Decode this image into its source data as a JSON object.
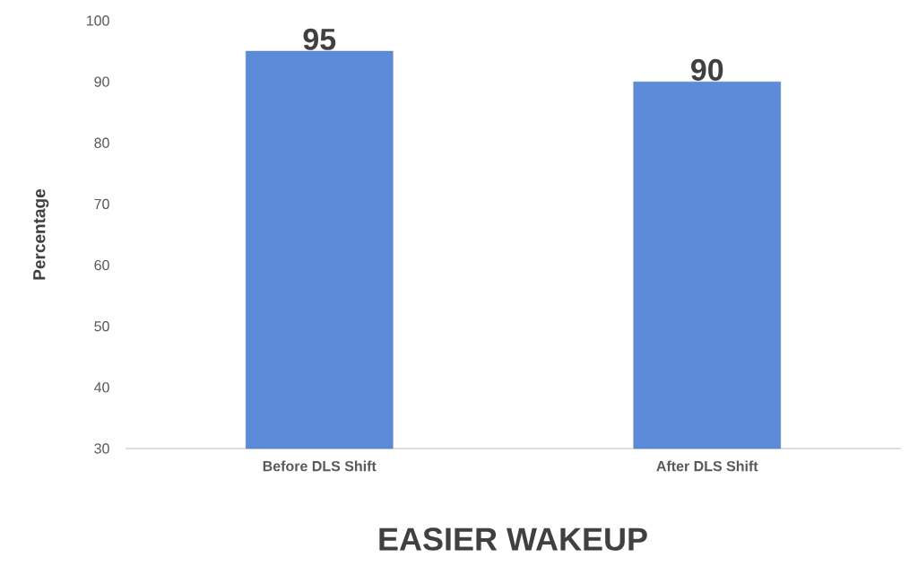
{
  "chart_data": {
    "type": "bar",
    "title": "EASIER WAKEUP",
    "ylabel": "Percentage",
    "categories": [
      "Before DLS Shift",
      "After DLS Shift"
    ],
    "values": [
      95,
      90
    ],
    "color": "#5b8bd9",
    "ylim": [
      30,
      100
    ],
    "yticks": [
      30,
      40,
      50,
      60,
      70,
      80,
      90,
      100
    ],
    "data_labels": true
  }
}
